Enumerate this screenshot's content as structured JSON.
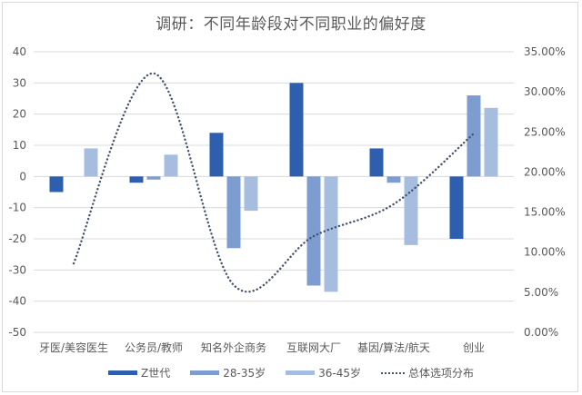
{
  "chart_data": {
    "type": "bar",
    "title": "调研：不同年龄段对不同职业的偏好度",
    "xlabel": "",
    "ylabel": "",
    "categories": [
      "牙医/美容医生",
      "公务员/教师",
      "知名外企商务",
      "互联网大厂",
      "基因/算法/航天",
      "创业"
    ],
    "series": [
      {
        "name": "Z世代",
        "type": "bar",
        "axis": "left",
        "color": "#2e5fae",
        "values": [
          -5,
          -2,
          14,
          30,
          9,
          -20
        ]
      },
      {
        "name": "28-35岁",
        "type": "bar",
        "axis": "left",
        "color": "#7d9ccf",
        "values": [
          0,
          -1,
          -23,
          -35,
          -2,
          26
        ]
      },
      {
        "name": "36-45岁",
        "type": "bar",
        "axis": "left",
        "color": "#a7bde0",
        "values": [
          9,
          7,
          -11,
          -37,
          -22,
          22
        ]
      },
      {
        "name": "总体选项分布",
        "type": "line",
        "style": "dotted",
        "axis": "right",
        "color": "#44546a",
        "values": [
          8.6,
          32.3,
          5.9,
          12.0,
          16.0,
          24.8
        ]
      }
    ],
    "ylim": [
      -50,
      40
    ],
    "yticks": [
      "40",
      "30",
      "20",
      "10",
      "0",
      "-10",
      "-20",
      "-30",
      "-40",
      "-50"
    ],
    "y2lim": [
      0,
      35
    ],
    "y2ticks": [
      "35.00%",
      "30.00%",
      "25.00%",
      "20.00%",
      "15.00%",
      "10.00%",
      "5.00%",
      "0.00%"
    ],
    "grid": true,
    "legend_position": "bottom"
  },
  "legend": [
    {
      "label": "Z世代",
      "kind": "bar",
      "color": "#2e5fae"
    },
    {
      "label": "28-35岁",
      "kind": "bar",
      "color": "#7d9ccf"
    },
    {
      "label": "36-45岁",
      "kind": "bar",
      "color": "#a7bde0"
    },
    {
      "label": "总体选项分布",
      "kind": "dotted-line",
      "color": "#44546a"
    }
  ]
}
